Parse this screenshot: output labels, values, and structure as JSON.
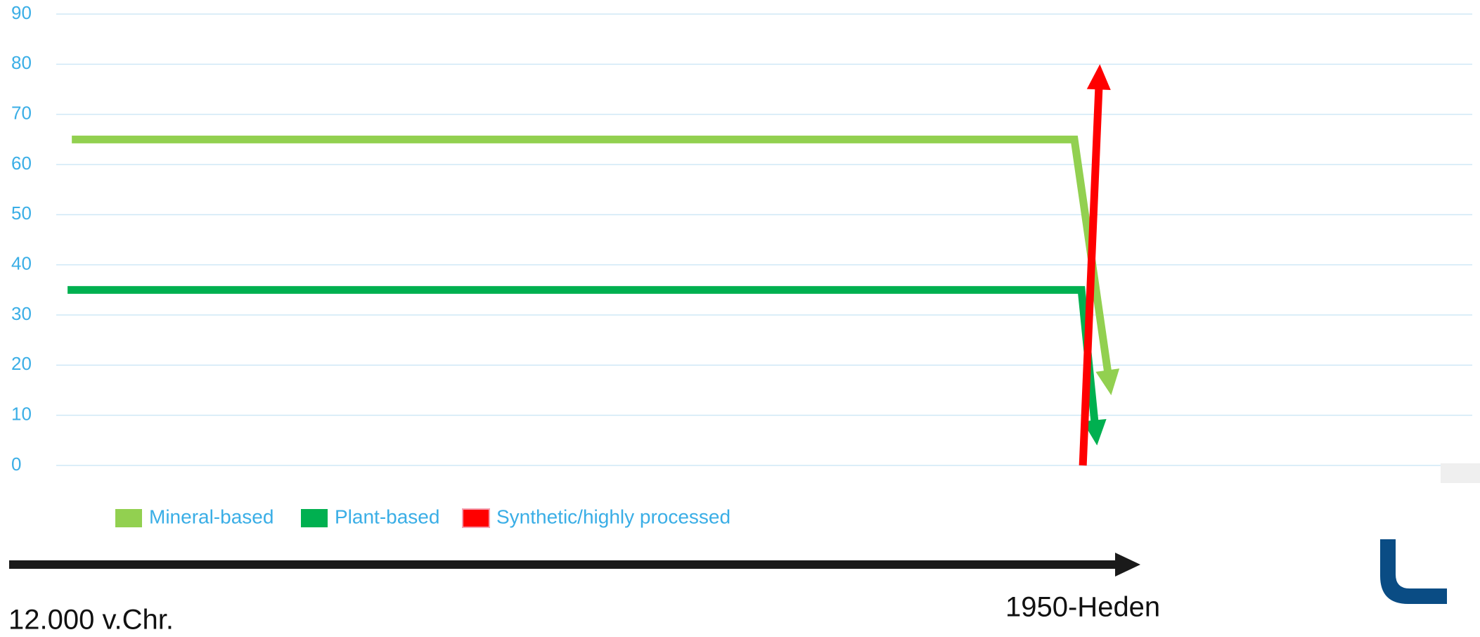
{
  "chart_data": {
    "type": "line",
    "xlim": [
      0,
      100
    ],
    "ylim": [
      0,
      90
    ],
    "yticks": [
      0,
      10,
      20,
      30,
      40,
      50,
      60,
      70,
      80,
      90
    ],
    "grid": true,
    "legend": "bottom-left",
    "series": [
      {
        "name": "Mineral-based",
        "color": "#92d050",
        "x": [
          1.1,
          71.9,
          74.5
        ],
        "values": [
          65,
          65,
          14
        ]
      },
      {
        "name": "Plant-based",
        "color": "#00b050",
        "x": [
          0.8,
          72.4,
          73.5
        ],
        "values": [
          35,
          35,
          4
        ]
      },
      {
        "name": "Synthetic/highly processed",
        "color": "#ff0000",
        "x": [
          72.5,
          73.7
        ],
        "values": [
          0,
          80
        ]
      }
    ],
    "annotations": [
      "12.000 v.Chr.",
      "1950-Heden"
    ]
  }
}
